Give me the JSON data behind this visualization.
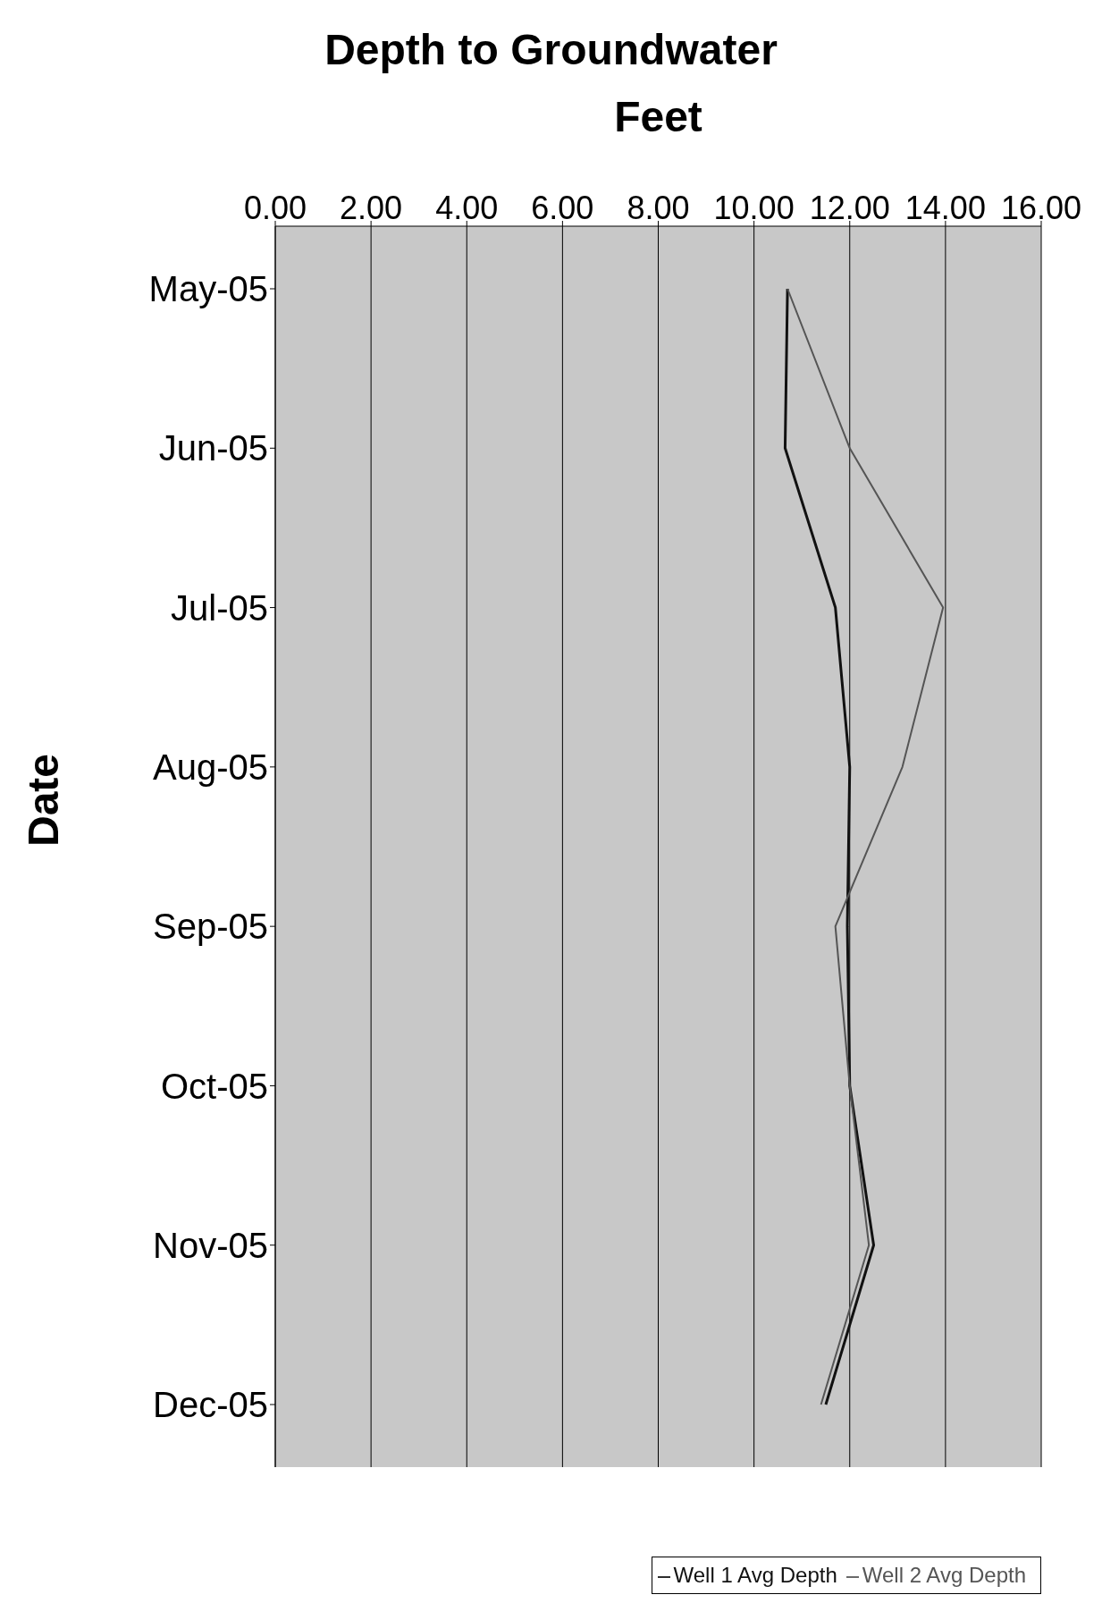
{
  "chart_data": {
    "type": "line",
    "orientation": "horizontal",
    "title": "Depth to Groundwater",
    "xlabel": "Feet",
    "ylabel": "Date",
    "categories": [
      "May-05",
      "Jun-05",
      "Jul-05",
      "Aug-05",
      "Sep-05",
      "Oct-05",
      "Nov-05",
      "Dec-05"
    ],
    "series": [
      {
        "name": "Well 1 Avg Depth",
        "color": "#111111",
        "values": [
          10.7,
          10.65,
          11.7,
          12.0,
          11.95,
          12.0,
          12.5,
          11.5
        ]
      },
      {
        "name": "Well 2 Avg Depth",
        "color": "#555555",
        "values": [
          10.7,
          12.0,
          13.95,
          13.1,
          11.7,
          12.0,
          12.4,
          11.4
        ]
      }
    ],
    "xlim": [
      0,
      16
    ],
    "xticks": [
      {
        "value": 0,
        "label": "0.00"
      },
      {
        "value": 2,
        "label": "2.00"
      },
      {
        "value": 4,
        "label": "4.00"
      },
      {
        "value": 6,
        "label": "6.00"
      },
      {
        "value": 8,
        "label": "8.00"
      },
      {
        "value": 10,
        "label": "10.00"
      },
      {
        "value": 12,
        "label": "12.00"
      },
      {
        "value": 14,
        "label": "14.00"
      },
      {
        "value": 16,
        "label": "16.00"
      }
    ],
    "grid": "x",
    "legend": "bottom right",
    "marker": "none",
    "line_style": "solid"
  }
}
